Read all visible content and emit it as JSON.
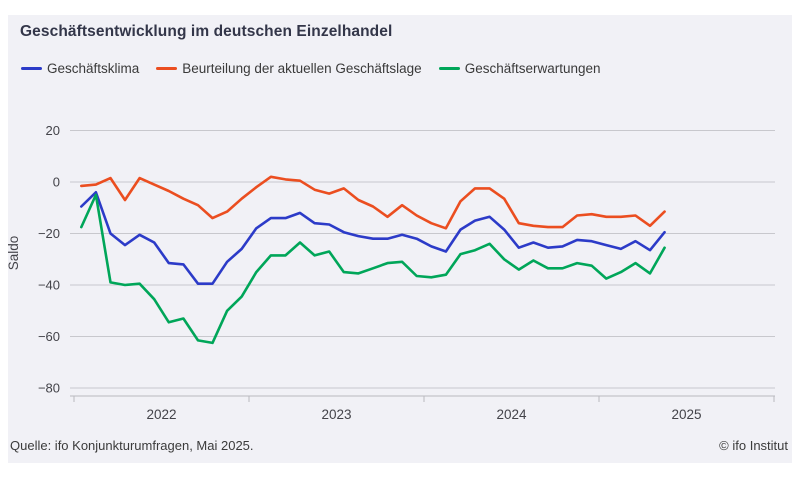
{
  "header": {
    "title": "Geschäftsentwicklung im deutschen Einzelhandel"
  },
  "footer": {
    "source": "Quelle: ifo Konjunkturumfragen, Mai 2025.",
    "copyright": "© ifo Institut"
  },
  "theme": {
    "page_bg": "#ffffff",
    "panel_bg": "#f1f1f6",
    "grid_color": "#c8c8cd",
    "axis_color": "#b9b9bf",
    "tick_label_color": "#434349",
    "title_color": "#333649",
    "text_color": "#3a3a3a"
  },
  "chart_data": {
    "type": "line",
    "title": "Geschäftsentwicklung im deutschen Einzelhandel",
    "xlabel": "",
    "ylabel": "Saldo",
    "ylim": [
      -85,
      25
    ],
    "yticks": [
      20,
      0,
      -20,
      -40,
      -60,
      -80
    ],
    "grid": true,
    "legend_position": "top",
    "x_year_labels": [
      "2022",
      "2023",
      "2024",
      "2025"
    ],
    "x_months": [
      "2022-01",
      "2022-02",
      "2022-03",
      "2022-04",
      "2022-05",
      "2022-06",
      "2022-07",
      "2022-08",
      "2022-09",
      "2022-10",
      "2022-11",
      "2022-12",
      "2023-01",
      "2023-02",
      "2023-03",
      "2023-04",
      "2023-05",
      "2023-06",
      "2023-07",
      "2023-08",
      "2023-09",
      "2023-10",
      "2023-11",
      "2023-12",
      "2024-01",
      "2024-02",
      "2024-03",
      "2024-04",
      "2024-05",
      "2024-06",
      "2024-07",
      "2024-08",
      "2024-09",
      "2024-10",
      "2024-11",
      "2024-12",
      "2025-01",
      "2025-02",
      "2025-03",
      "2025-04",
      "2025-05"
    ],
    "series": [
      {
        "name": "Geschäftsklima",
        "color": "#2c3bc8",
        "values": [
          -9.5,
          -4,
          -20,
          -24.5,
          -20.5,
          -23.5,
          -31.5,
          -32,
          -39.5,
          -39.5,
          -31,
          -26,
          -18,
          -14,
          -14,
          -12,
          -16,
          -16.5,
          -19.5,
          -21,
          -22,
          -22,
          -20.5,
          -22,
          -25,
          -27,
          -18.5,
          -15,
          -13.5,
          -18.5,
          -25.5,
          -23.5,
          -25.5,
          -25,
          -22.5,
          -23,
          -24.5,
          -26,
          -23,
          -26.5,
          -19.5
        ]
      },
      {
        "name": "Beurteilung der aktuellen Geschäftslage",
        "color": "#eb4e20",
        "values": [
          -1.5,
          -1,
          1.5,
          -7,
          1.5,
          -1,
          -3.5,
          -6.5,
          -9,
          -14,
          -11.5,
          -6.5,
          -2,
          2,
          1,
          0.5,
          -3,
          -4.5,
          -2.5,
          -7,
          -9.5,
          -13.5,
          -9,
          -13,
          -16,
          -18,
          -7.5,
          -2.5,
          -2.5,
          -6.5,
          -16,
          -17,
          -17.5,
          -17.5,
          -13,
          -12.5,
          -13.5,
          -13.5,
          -13,
          -17,
          -11.5
        ]
      },
      {
        "name": "Geschäftserwartungen",
        "color": "#00a659",
        "values": [
          -17.5,
          -5,
          -39,
          -40,
          -39.5,
          -45.5,
          -54.5,
          -53,
          -61.5,
          -62.5,
          -50,
          -44.5,
          -35,
          -28.5,
          -28.5,
          -23.5,
          -28.5,
          -27,
          -35,
          -35.5,
          -33.5,
          -31.5,
          -31,
          -36.5,
          -37,
          -36,
          -28,
          -26.5,
          -24,
          -30,
          -34,
          -30.5,
          -33.5,
          -33.5,
          -31.5,
          -32.5,
          -37.5,
          -35,
          -31.5,
          -35.5,
          -25.5
        ]
      }
    ]
  }
}
